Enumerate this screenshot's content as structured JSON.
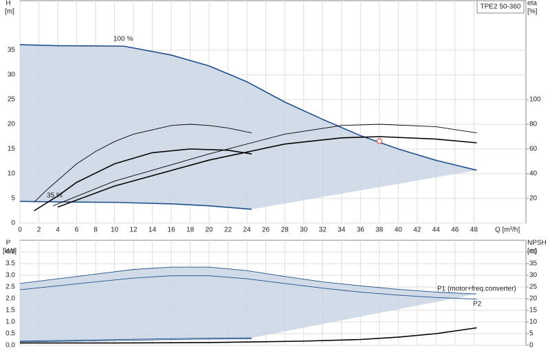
{
  "chart_data": [
    {
      "type": "line",
      "box_label": "TPE2 50-360",
      "ylabel": "H",
      "yunit": "[m]",
      "y2label": "eta",
      "y2unit": "[%]",
      "xlabel": "Q [m³/h]",
      "annotations": [
        "100 %",
        "35 %"
      ],
      "xlim": [
        0,
        53.5
      ],
      "xticks": [
        0,
        2,
        4,
        6,
        8,
        10,
        12,
        14,
        16,
        18,
        20,
        22,
        24,
        26,
        28,
        30,
        32,
        34,
        36,
        38,
        40,
        42,
        44,
        46,
        48
      ],
      "ylim": [
        0,
        45
      ],
      "yticks": [
        0,
        5,
        10,
        15,
        20,
        25,
        30,
        35
      ],
      "y2lim": [
        0,
        180
      ],
      "y2ticks": [
        20,
        40,
        60,
        80,
        100
      ],
      "grid": true,
      "series": [
        {
          "color": "#1f4e8c",
          "style": "thick",
          "x": [
            0,
            4,
            11,
            16,
            20,
            24,
            28,
            32,
            36,
            40,
            44,
            48.3
          ],
          "values": [
            36.1,
            35.9,
            35.8,
            34,
            31.8,
            28.6,
            24.5,
            21,
            17.7,
            15,
            12.7,
            10.7
          ]
        },
        {
          "color": "#1f4e8c",
          "style": "thick",
          "x": [
            0,
            4,
            10,
            16,
            20,
            24.5
          ],
          "values": [
            4.4,
            4.3,
            4.2,
            3.9,
            3.5,
            2.8
          ]
        },
        {
          "color": "#000000",
          "style": "thin",
          "axis": "y2",
          "x": [
            1.5,
            3,
            6,
            8,
            10,
            12,
            16,
            18,
            20,
            22,
            24.5
          ],
          "values": [
            17,
            28,
            48,
            58,
            66,
            72,
            79,
            80,
            79,
            77,
            73
          ]
        },
        {
          "color": "#000000",
          "style": "thick",
          "axis": "y2",
          "x": [
            1.5,
            4,
            6,
            10,
            14,
            18,
            22,
            24.5
          ],
          "values": [
            10,
            22,
            33,
            48,
            57,
            60,
            59,
            56
          ]
        },
        {
          "color": "#000000",
          "style": "thin",
          "axis": "y2",
          "x": [
            3.5,
            10,
            20,
            28,
            34,
            38,
            44,
            48.3
          ],
          "values": [
            14,
            34,
            56,
            72,
            79,
            80,
            78,
            73
          ]
        },
        {
          "color": "#000000",
          "style": "thick",
          "axis": "y2",
          "x": [
            4,
            10,
            20,
            28,
            34,
            38,
            44,
            48.3
          ],
          "values": [
            13,
            30,
            51,
            64,
            69,
            70,
            68,
            65
          ]
        },
        {
          "color": "#e05050",
          "marker": "circle",
          "x": [
            38
          ],
          "values": [
            16.6
          ]
        }
      ]
    },
    {
      "type": "line",
      "ylabel": "P",
      "yunit": "[kW]",
      "y2label": "NPSH",
      "y2unit": "[m]",
      "annotations": [
        "P1 (motor+freq.converter)",
        "P2"
      ],
      "xlim": [
        0,
        53.5
      ],
      "ylim": [
        0,
        4.5
      ],
      "yticks": [
        {
          "value": 0,
          "label": "0.0"
        },
        {
          "value": 0.5,
          "label": "0.5"
        },
        {
          "value": 1,
          "label": "1.0"
        },
        {
          "value": 1.5,
          "label": "1.5"
        },
        {
          "value": 2,
          "label": "2.0"
        },
        {
          "value": 2.5,
          "label": "2.5"
        },
        {
          "value": 3,
          "label": "3.0"
        },
        {
          "value": 3.5,
          "label": "3.5"
        },
        {
          "value": 4,
          "label": "4.0"
        }
      ],
      "y2lim": [
        0,
        45
      ],
      "y2ticks": [
        0,
        5,
        10,
        15,
        20,
        25,
        30,
        35,
        40
      ],
      "grid": true,
      "series": [
        {
          "color": "#1f4e8c",
          "style": "thin",
          "x": [
            0,
            4,
            8,
            12,
            16,
            20,
            24,
            28,
            32,
            36,
            40,
            44,
            48.3
          ],
          "values": [
            2.65,
            2.85,
            3.05,
            3.25,
            3.35,
            3.35,
            3.2,
            2.95,
            2.72,
            2.55,
            2.4,
            2.28,
            2.2
          ]
        },
        {
          "color": "#1f4e8c",
          "style": "thin",
          "x": [
            0,
            6,
            12,
            18,
            24.5
          ],
          "values": [
            0.18,
            0.22,
            0.26,
            0.3,
            0.32
          ]
        },
        {
          "color": "#1f4e8c",
          "style": "thin",
          "x": [
            0,
            4,
            8,
            12,
            16,
            20,
            24,
            28,
            32,
            36,
            40,
            44,
            48.3
          ],
          "values": [
            2.38,
            2.55,
            2.72,
            2.88,
            2.98,
            2.98,
            2.85,
            2.65,
            2.45,
            2.28,
            2.15,
            2.05,
            1.98
          ]
        },
        {
          "color": "#1f4e8c",
          "style": "thin",
          "x": [
            0,
            6,
            12,
            18,
            24.5
          ],
          "values": [
            0.15,
            0.18,
            0.22,
            0.26,
            0.28
          ]
        },
        {
          "color": "#000000",
          "style": "thick",
          "axis": "y2",
          "x": [
            0,
            10,
            20,
            30,
            36,
            40,
            44,
            48.3
          ],
          "values": [
            1,
            1,
            1.2,
            1.8,
            2.5,
            3.5,
            5,
            7.5
          ]
        }
      ]
    }
  ]
}
